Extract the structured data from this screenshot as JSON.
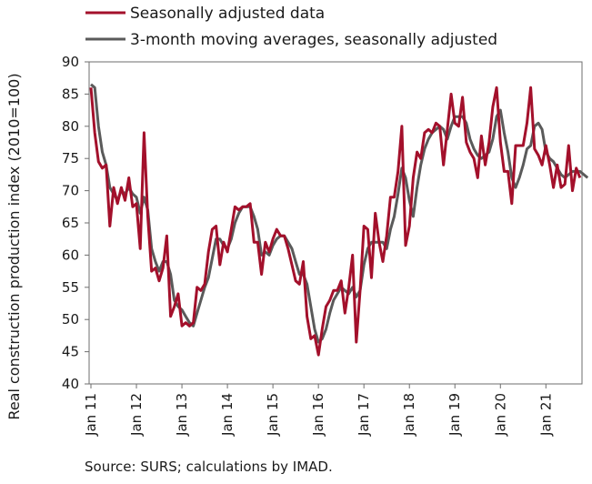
{
  "chart_data": {
    "type": "line",
    "ylabel": "Real construction production index (2010=100)",
    "ylim": [
      40,
      90
    ],
    "yticks": [
      40,
      45,
      50,
      55,
      60,
      65,
      70,
      75,
      80,
      85,
      90
    ],
    "xtick_labels": [
      "Jan 11",
      "Jan 12",
      "Jan 13",
      "Jan 14",
      "Jan 15",
      "Jan 16",
      "Jan 17",
      "Jan 18",
      "Jan 19",
      "Jan 20",
      "Jan 21"
    ],
    "x_start": "2011-01",
    "legend_position": "top-left",
    "grid": false,
    "series": [
      {
        "name": "Seasonally adjusted data",
        "color": "#a3102b",
        "values": [
          86,
          79,
          74.5,
          73.5,
          74,
          64.5,
          70.5,
          68,
          70.5,
          68.5,
          72,
          67.5,
          68,
          61,
          79,
          66,
          57.5,
          58,
          56,
          58,
          63,
          50.5,
          52,
          54,
          49,
          49.5,
          49,
          49.5,
          55,
          54.5,
          55.5,
          60.5,
          64,
          64.5,
          58.5,
          62,
          60.5,
          64,
          67.5,
          67,
          67.5,
          67.5,
          68,
          62,
          62,
          57,
          62,
          60.5,
          62.5,
          64,
          63,
          63,
          61,
          58.5,
          56,
          55.5,
          59,
          50.5,
          47,
          47.5,
          44.5,
          48.5,
          52,
          53,
          54.5,
          54.5,
          56,
          51,
          55,
          60,
          46.5,
          54.5,
          64.5,
          64,
          56.5,
          66.5,
          62,
          59,
          63,
          69,
          69,
          73,
          80,
          61.5,
          64.5,
          72,
          76,
          75,
          79,
          79.5,
          79,
          80.5,
          80,
          74,
          79.5,
          85,
          80.5,
          80,
          84.5,
          77.5,
          76,
          75,
          72,
          78.5,
          74,
          77.5,
          83,
          86,
          77.5,
          73,
          73,
          68,
          77,
          77,
          77,
          80.5,
          86,
          76.5,
          75.5,
          74,
          77,
          74,
          70.5,
          74,
          70.5,
          71,
          77,
          70,
          73.5,
          72
        ]
      },
      {
        "name": "3-month moving averages, seasonally adjusted",
        "color": "#5a5a5a",
        "values": [
          86.5,
          86,
          80,
          76,
          74,
          70.5,
          69.5,
          68.5,
          70,
          69.5,
          70.5,
          69.5,
          69,
          66.5,
          69,
          67,
          61,
          59,
          57.5,
          59,
          59,
          57,
          53,
          52,
          51.5,
          50.5,
          49.5,
          49,
          51,
          53,
          55,
          56.5,
          59.5,
          62.5,
          62.5,
          61.5,
          61,
          62.5,
          65,
          66.5,
          67.5,
          67.5,
          67.5,
          66,
          64,
          60,
          60.5,
          60,
          61.5,
          62.5,
          63,
          63,
          62,
          61,
          59,
          57,
          57,
          55.5,
          52,
          48.5,
          46.5,
          47,
          48.5,
          51,
          53,
          54,
          55,
          54.5,
          54,
          55,
          53.5,
          54.5,
          58.5,
          61,
          62,
          62,
          62,
          62,
          61,
          64,
          66,
          69.5,
          73.5,
          72,
          68.5,
          66,
          70.5,
          74,
          76.5,
          78,
          79,
          79.5,
          80,
          79.5,
          78,
          80,
          81.5,
          81.5,
          81.5,
          80.5,
          78,
          76.5,
          75.5,
          75,
          75.5,
          76,
          78,
          81.5,
          82.5,
          79,
          76,
          72,
          70.5,
          72,
          74,
          76.5,
          77,
          80,
          80.5,
          79.5,
          76,
          75,
          74.5,
          73.5,
          72.5,
          72,
          72.5,
          73,
          73,
          73,
          72.5,
          72
        ]
      }
    ]
  },
  "footer": {
    "source": "Source: SURS; calculations by IMAD."
  }
}
